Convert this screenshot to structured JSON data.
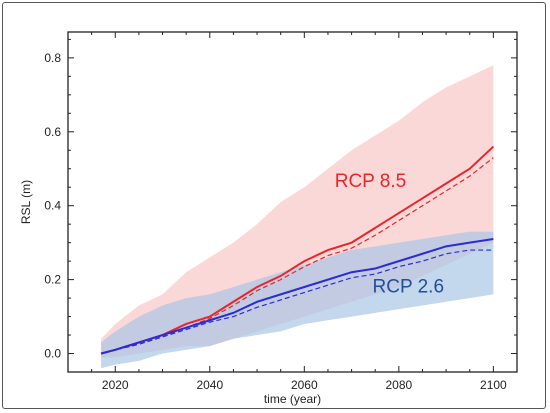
{
  "chart_data": {
    "type": "line",
    "xlabel": "time (year)",
    "ylabel": "RSL (m)",
    "xlim": [
      2010,
      2105
    ],
    "ylim": [
      -0.05,
      0.87
    ],
    "xticks": [
      2020,
      2040,
      2060,
      2080,
      2100
    ],
    "yticks": [
      0.0,
      0.2,
      0.4,
      0.6,
      0.8
    ],
    "ytick_labels": [
      "0.0",
      "0.2",
      "0.4",
      "0.6",
      "0.8"
    ],
    "grid": false,
    "series": [
      {
        "name": "RCP 8.5",
        "color": "#e8262a",
        "band_color": "#fbd6d6",
        "x": [
          2017,
          2020,
          2025,
          2030,
          2035,
          2040,
          2045,
          2050,
          2055,
          2060,
          2065,
          2070,
          2075,
          2080,
          2085,
          2090,
          2095,
          2100
        ],
        "mean": [
          0.0,
          0.01,
          0.03,
          0.05,
          0.08,
          0.1,
          0.14,
          0.18,
          0.21,
          0.25,
          0.28,
          0.3,
          0.34,
          0.38,
          0.42,
          0.46,
          0.5,
          0.56
        ],
        "mean_dashed": [
          0.0,
          0.01,
          0.025,
          0.045,
          0.07,
          0.095,
          0.13,
          0.17,
          0.2,
          0.235,
          0.265,
          0.285,
          0.32,
          0.36,
          0.4,
          0.44,
          0.48,
          0.53
        ],
        "upper": [
          0.04,
          0.08,
          0.13,
          0.16,
          0.22,
          0.26,
          0.3,
          0.35,
          0.41,
          0.45,
          0.5,
          0.55,
          0.59,
          0.63,
          0.68,
          0.72,
          0.75,
          0.78
        ],
        "lower": [
          -0.01,
          -0.01,
          0.0,
          0.01,
          0.02,
          0.02,
          0.04,
          0.06,
          0.08,
          0.1,
          0.12,
          0.14,
          0.16,
          0.18,
          0.21,
          0.24,
          0.27,
          0.3
        ]
      },
      {
        "name": "RCP 2.6",
        "color": "#2b2bd8",
        "band_color": "#a9c6e6",
        "x": [
          2017,
          2020,
          2025,
          2030,
          2035,
          2040,
          2045,
          2050,
          2055,
          2060,
          2065,
          2070,
          2075,
          2080,
          2085,
          2090,
          2095,
          2100
        ],
        "mean": [
          0.0,
          0.01,
          0.03,
          0.05,
          0.07,
          0.09,
          0.11,
          0.14,
          0.16,
          0.18,
          0.2,
          0.22,
          0.23,
          0.25,
          0.27,
          0.29,
          0.3,
          0.31
        ],
        "mean_dashed": [
          0.0,
          0.01,
          0.025,
          0.045,
          0.065,
          0.085,
          0.1,
          0.125,
          0.145,
          0.165,
          0.185,
          0.205,
          0.215,
          0.235,
          0.25,
          0.27,
          0.28,
          0.28
        ],
        "upper": [
          0.03,
          0.06,
          0.1,
          0.13,
          0.15,
          0.16,
          0.18,
          0.2,
          0.22,
          0.24,
          0.26,
          0.28,
          0.29,
          0.3,
          0.31,
          0.32,
          0.33,
          0.33
        ],
        "lower": [
          -0.04,
          -0.03,
          -0.02,
          0.0,
          0.01,
          0.02,
          0.04,
          0.05,
          0.06,
          0.08,
          0.09,
          0.1,
          0.11,
          0.12,
          0.13,
          0.14,
          0.15,
          0.16
        ]
      }
    ],
    "annotations": [
      {
        "text": "RCP 8.5",
        "color": "#e8262a",
        "x": 2074,
        "y": 0.45
      },
      {
        "text": "RCP 2.6",
        "color": "#1f4f9a",
        "x": 2082,
        "y": 0.165
      }
    ]
  }
}
